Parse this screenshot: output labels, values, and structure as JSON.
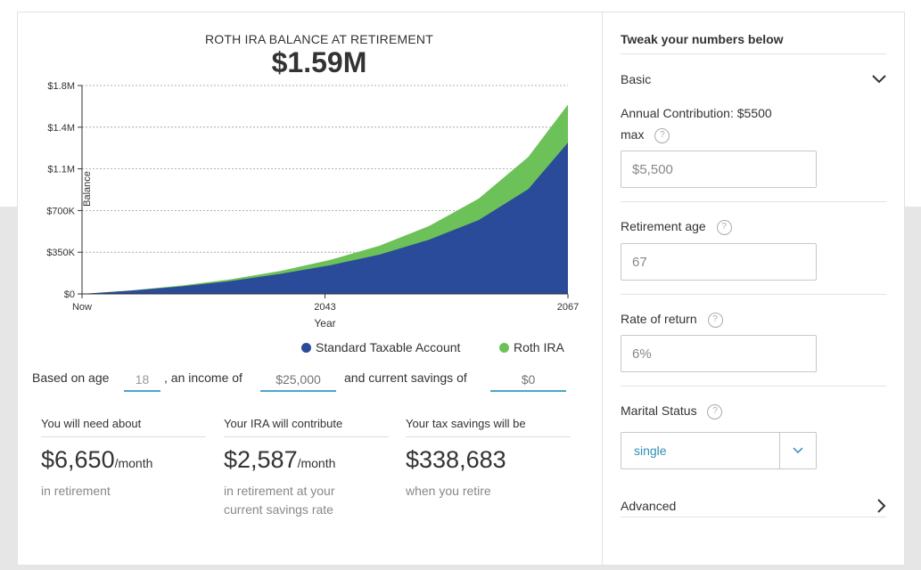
{
  "chart_data": {
    "type": "area",
    "title": "ROTH IRA BALANCE AT RETIREMENT",
    "headline": "$1.59M",
    "xlabel": "Year",
    "ylabel": "Balance",
    "x_ticks": [
      "Now",
      "2043",
      "2067"
    ],
    "y_ticks": [
      "$0",
      "$350K",
      "$700K",
      "$1.1M",
      "$1.4M",
      "$1.8M"
    ],
    "y_tick_values": [
      0,
      350000,
      700000,
      1050000,
      1400000,
      1750000
    ],
    "ylim": [
      0,
      1750000
    ],
    "grid": true,
    "legend": "bottom-right",
    "x": [
      0,
      5,
      10,
      15,
      20,
      25,
      30,
      35,
      40,
      45,
      49
    ],
    "series": [
      {
        "name": "Standard Taxable Account",
        "color": "#2a4a9a",
        "values": [
          0,
          28000,
          63000,
          108000,
          168000,
          240000,
          330000,
          455000,
          620000,
          880000,
          1270000
        ]
      },
      {
        "name": "Roth IRA",
        "color": "#6cc158",
        "values": [
          0,
          30000,
          70000,
          122000,
          193000,
          285000,
          405000,
          570000,
          800000,
          1150000,
          1590000
        ]
      }
    ]
  },
  "based_on": {
    "prefix": "Based on age",
    "age": "18",
    "income_prefix": ", an income of",
    "income_placeholder": "$25,000",
    "savings_prefix": "and current savings of",
    "savings_placeholder": "$0"
  },
  "stats": [
    {
      "label": "You will need about",
      "value": "$6,650",
      "unit": "/month",
      "sub": "in retirement"
    },
    {
      "label": "Your IRA will contribute",
      "value": "$2,587",
      "unit": "/month",
      "sub": "in retirement at your current savings rate"
    },
    {
      "label": "Your tax savings will be",
      "value": "$338,683",
      "unit": "",
      "sub": "when you retire"
    }
  ],
  "panel": {
    "heading": "Tweak your numbers below",
    "basic_label": "Basic",
    "basic_icon": "chevron-down-icon",
    "contribution_label": "Annual Contribution: $5500 max",
    "contribution_value": "$5,500",
    "retirement_label": "Retirement age",
    "retirement_value": "67",
    "return_label": "Rate of return",
    "return_value": "6%",
    "marital_label": "Marital Status",
    "marital_value": "single",
    "advanced_label": "Advanced",
    "advanced_icon": "chevron-right-icon",
    "help_glyph": "?"
  },
  "colors": {
    "accent": "#4aa6c9",
    "roth": "#6cc158",
    "taxable": "#2a4a9a"
  }
}
